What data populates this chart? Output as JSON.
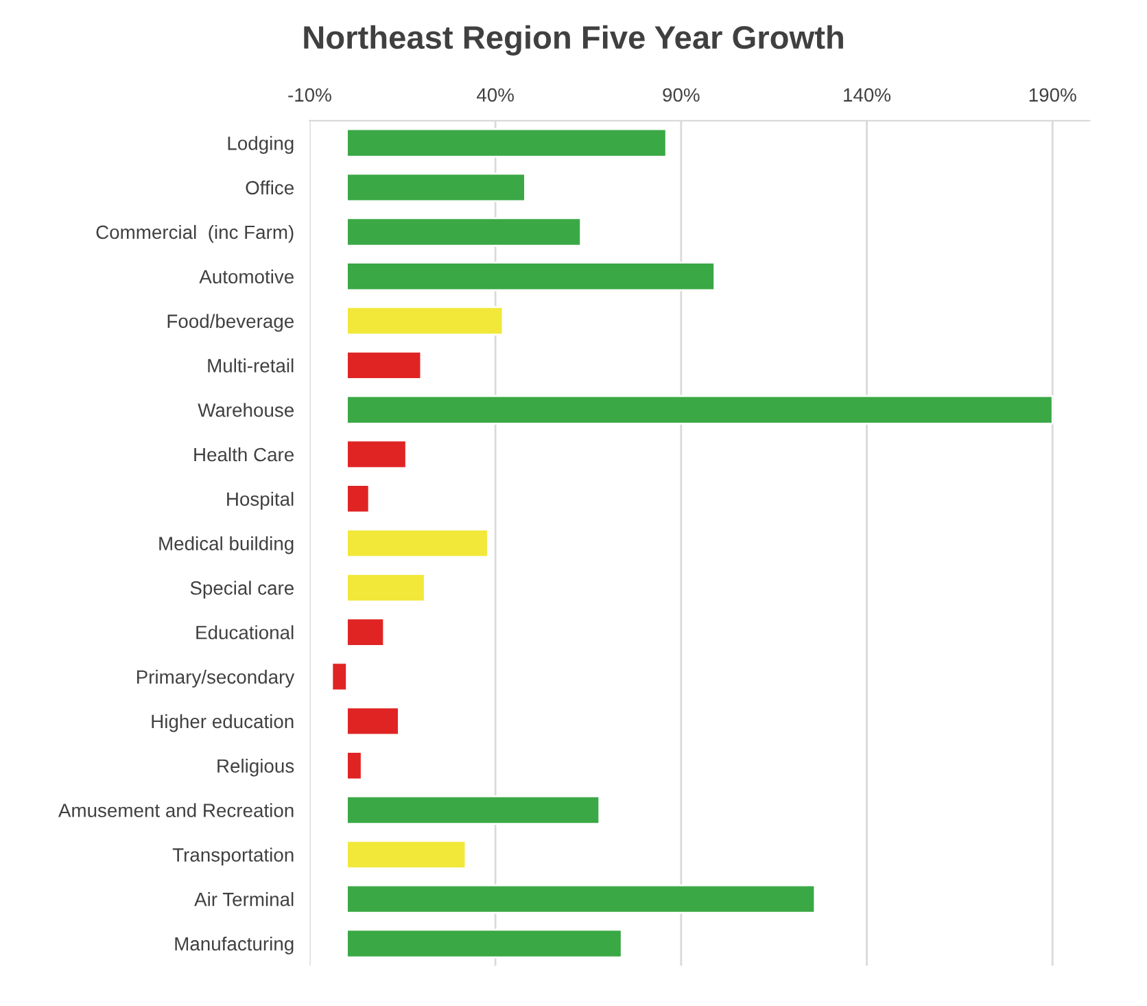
{
  "chart_data": {
    "type": "bar",
    "orientation": "horizontal",
    "title": "Northeast Region Five Year Growth",
    "categories": [
      "Lodging",
      "Office",
      "Commercial  (inc Farm)",
      "Automotive",
      "Food/beverage",
      "Multi-retail",
      "Warehouse",
      "Health Care",
      "Hospital",
      "Medical building",
      "Special care",
      "Educational",
      "Primary/secondary",
      "Higher education",
      "Religious",
      "Amusement and Recreation",
      "Transportation",
      "Air Terminal",
      "Manufacturing"
    ],
    "values": [
      86,
      48,
      63,
      99,
      42,
      20,
      190,
      16,
      6,
      38,
      21,
      10,
      -4,
      14,
      4,
      68,
      32,
      126,
      74
    ],
    "colors": [
      "#3aa845",
      "#3aa845",
      "#3aa845",
      "#3aa845",
      "#f2e83a",
      "#e02424",
      "#3aa845",
      "#e02424",
      "#e02424",
      "#f2e83a",
      "#f2e83a",
      "#e02424",
      "#e02424",
      "#e02424",
      "#e02424",
      "#3aa845",
      "#f2e83a",
      "#3aa845",
      "#3aa845"
    ],
    "xlim": [
      -10,
      200
    ],
    "xticks": [
      {
        "value": -10,
        "label": "-10%"
      },
      {
        "value": 40,
        "label": "40%"
      },
      {
        "value": 90,
        "label": "90%"
      },
      {
        "value": 140,
        "label": "140%"
      },
      {
        "value": 190,
        "label": "190%"
      }
    ],
    "grid": "x",
    "legend": false
  }
}
